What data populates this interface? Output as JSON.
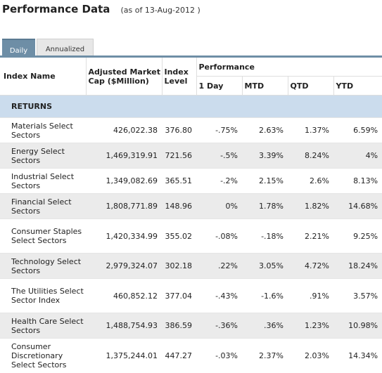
{
  "header": {
    "title": "Performance Data",
    "as_of": "(as of 13-Aug-2012 )"
  },
  "tabs": [
    {
      "label": "Daily",
      "active": true
    },
    {
      "label": "Annualized",
      "active": false
    }
  ],
  "columns": {
    "index_name": "Index Name",
    "market_cap": "Adjusted Market Cap ($Million)",
    "index_level": "Index Level",
    "performance": "Performance",
    "one_day": "1 Day",
    "mtd": "MTD",
    "qtd": "QTD",
    "ytd": "YTD"
  },
  "section_label": "RETURNS",
  "rows": [
    {
      "name": "Materials Select Sectors",
      "cap": "426,022.38",
      "level": "376.80",
      "one_day": "-.75%",
      "mtd": "2.63%",
      "qtd": "1.37%",
      "ytd": "6.59%"
    },
    {
      "name": "Energy Select Sectors",
      "cap": "1,469,319.91",
      "level": "721.56",
      "one_day": "-.5%",
      "mtd": "3.39%",
      "qtd": "8.24%",
      "ytd": "4%"
    },
    {
      "name": "Industrial Select Sectors",
      "cap": "1,349,082.69",
      "level": "365.51",
      "one_day": "-.2%",
      "mtd": "2.15%",
      "qtd": "2.6%",
      "ytd": "8.13%"
    },
    {
      "name": "Financial Select Sectors",
      "cap": "1,808,771.89",
      "level": "148.96",
      "one_day": "0%",
      "mtd": "1.78%",
      "qtd": "1.82%",
      "ytd": "14.68%"
    },
    {
      "name": "Consumer Staples Select Sectors",
      "cap": "1,420,334.99",
      "level": "355.02",
      "one_day": "-.08%",
      "mtd": "-.18%",
      "qtd": "2.21%",
      "ytd": "9.25%"
    },
    {
      "name": "Technology Select Sectors",
      "cap": "2,979,324.07",
      "level": "302.18",
      "one_day": ".22%",
      "mtd": "3.05%",
      "qtd": "4.72%",
      "ytd": "18.24%"
    },
    {
      "name": "The Utilities Select Sector Index",
      "cap": "460,852.12",
      "level": "377.04",
      "one_day": "-.43%",
      "mtd": "-1.6%",
      "qtd": ".91%",
      "ytd": "3.57%"
    },
    {
      "name": "Health Care Select Sectors",
      "cap": "1,488,754.93",
      "level": "386.59",
      "one_day": "-.36%",
      "mtd": ".36%",
      "qtd": "1.23%",
      "ytd": "10.98%"
    },
    {
      "name": "Consumer Discretionary Select Sectors",
      "cap": "1,375,244.01",
      "level": "447.27",
      "one_day": "-.03%",
      "mtd": "2.37%",
      "qtd": "2.03%",
      "ytd": "14.34%"
    }
  ]
}
